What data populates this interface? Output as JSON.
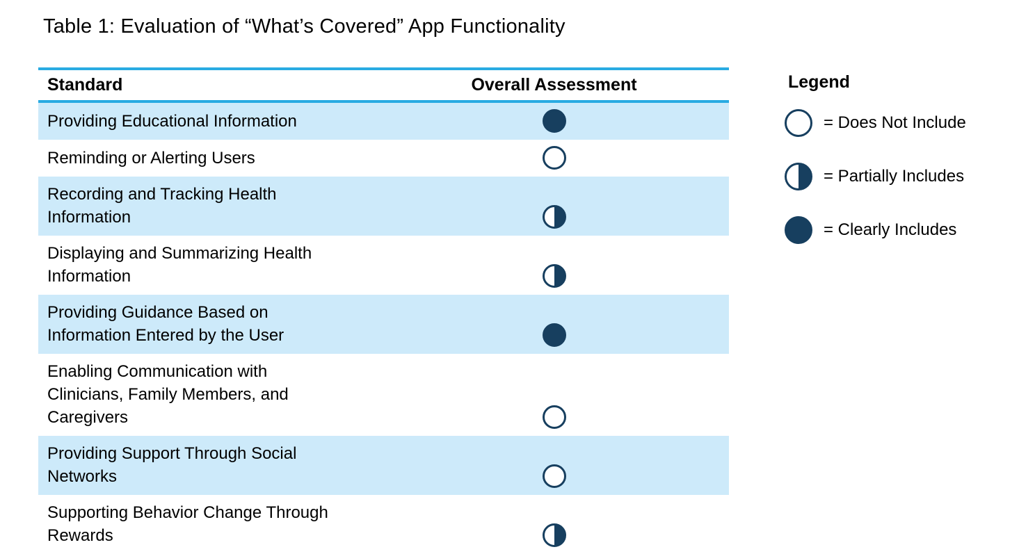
{
  "title": "Table 1: Evaluation of “What’s Covered” App Functionality",
  "colors": {
    "navy": "#173F5F",
    "row_stripe": "#CDEAFA",
    "rule_blue": "#29ABE2"
  },
  "table": {
    "columns": [
      "Standard",
      "Overall Assessment"
    ],
    "rows": [
      {
        "standard": "Providing Educational Information",
        "assessment": "clearly-includes"
      },
      {
        "standard": "Reminding or Alerting Users",
        "assessment": "does-not-include"
      },
      {
        "standard": "Recording and Tracking Health Information",
        "assessment": "partially-includes"
      },
      {
        "standard": "Displaying and Summarizing Health Information",
        "assessment": "partially-includes"
      },
      {
        "standard": "Providing Guidance Based on Information Entered by the User",
        "assessment": "clearly-includes"
      },
      {
        "standard": "Enabling Communication with Clinicians, Family Members, and Caregivers",
        "assessment": "does-not-include"
      },
      {
        "standard": "Providing Support Through Social Networks",
        "assessment": "does-not-include"
      },
      {
        "standard": "Supporting Behavior Change Through Rewards",
        "assessment": "partially-includes"
      }
    ]
  },
  "legend": {
    "title": "Legend",
    "items": [
      {
        "symbol": "does-not-include",
        "label": "= Does Not Include"
      },
      {
        "symbol": "partially-includes",
        "label": "= Partially Includes"
      },
      {
        "symbol": "clearly-includes",
        "label": "= Clearly Includes"
      }
    ]
  }
}
